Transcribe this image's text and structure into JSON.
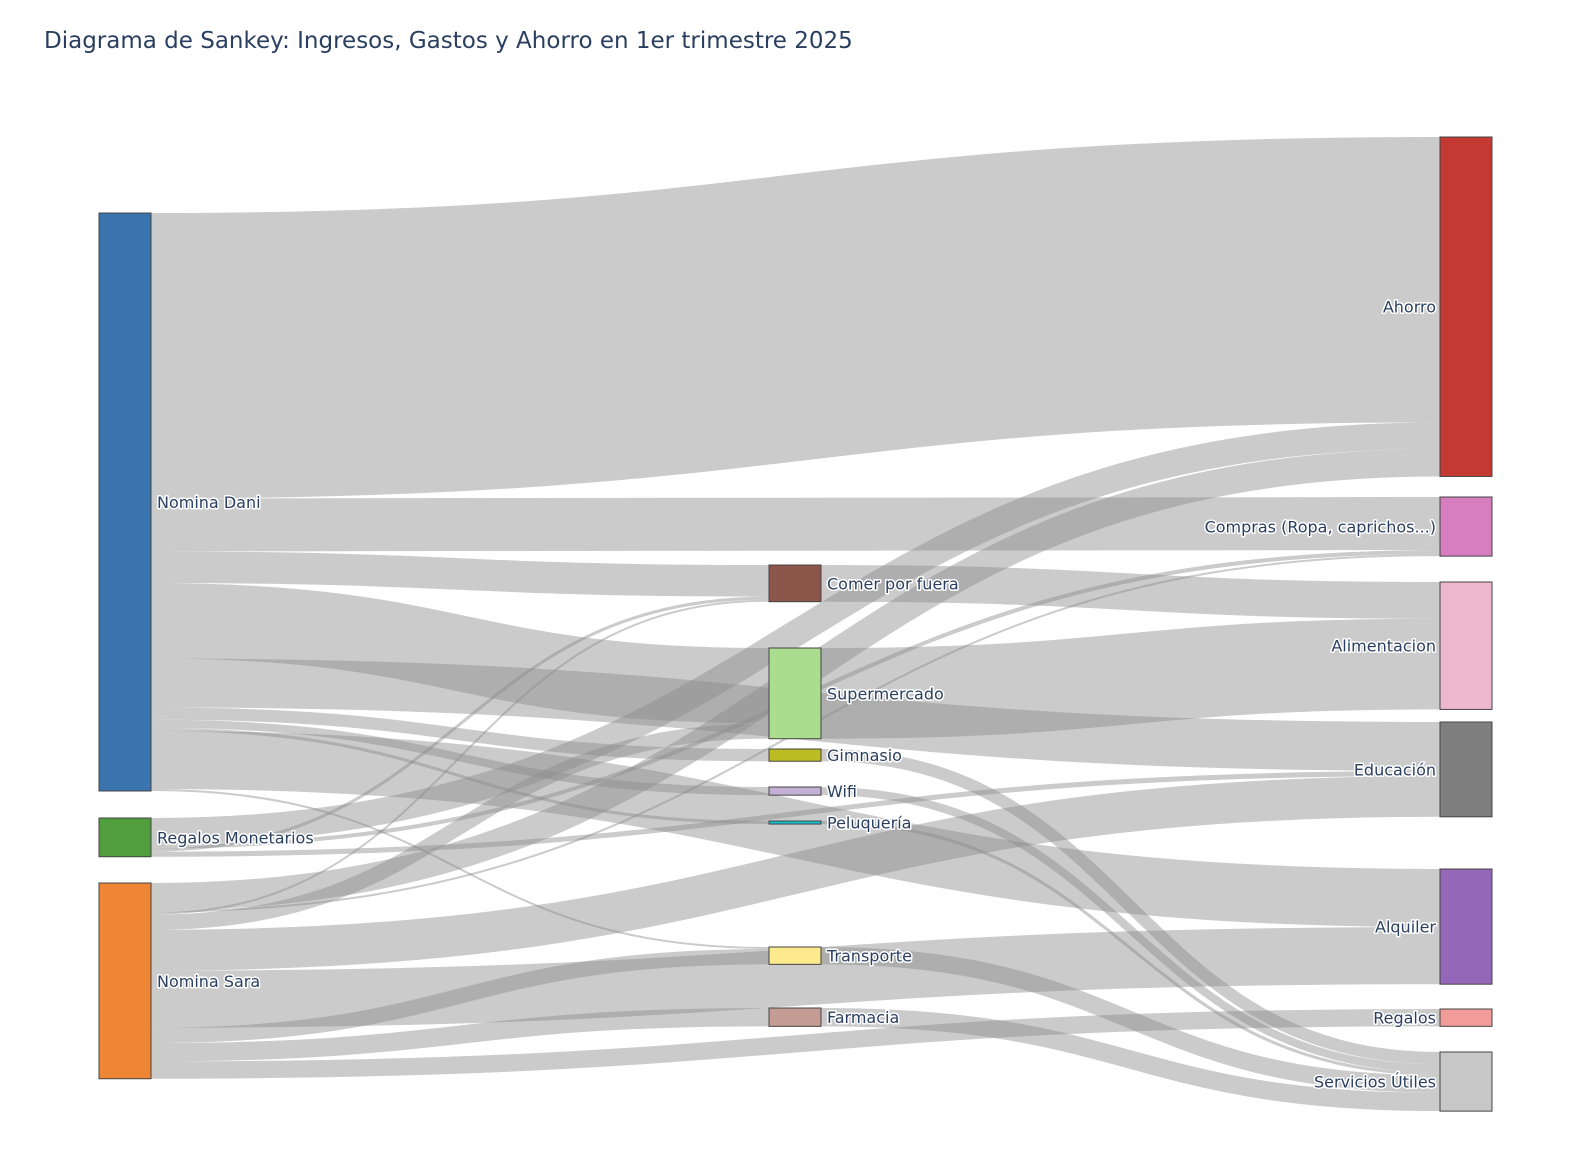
{
  "title": "Diagrama de Sankey: Ingresos, Gastos y Ahorro en 1er trimestre 2025",
  "chart_data": {
    "type": "sankey",
    "nodes": [
      {
        "id": "dani",
        "label": "Nomina Dani",
        "color": "#3a75af"
      },
      {
        "id": "regmon",
        "label": "Regalos Monetarios",
        "color": "#519e3e"
      },
      {
        "id": "sara",
        "label": "Nomina Sara",
        "color": "#ef8636"
      },
      {
        "id": "comer",
        "label": "Comer por fuera",
        "color": "#8c564b"
      },
      {
        "id": "super",
        "label": "Supermercado",
        "color": "#aadd8e"
      },
      {
        "id": "gym",
        "label": "Gimnasio",
        "color": "#bcbd22"
      },
      {
        "id": "wifi",
        "label": "Wifi",
        "color": "#c5b0d5"
      },
      {
        "id": "pelu",
        "label": "Peluquería",
        "color": "#17becf"
      },
      {
        "id": "transp",
        "label": "Transporte",
        "color": "#fdea8e"
      },
      {
        "id": "farm",
        "label": "Farmacia",
        "color": "#c49c94"
      },
      {
        "id": "ahorro",
        "label": "Ahorro",
        "color": "#c53933"
      },
      {
        "id": "compras",
        "label": "Compras (Ropa, caprichos...)",
        "color": "#d67ec0"
      },
      {
        "id": "alim",
        "label": "Alimentacion",
        "color": "#edb8ce"
      },
      {
        "id": "educ",
        "label": "Educación",
        "color": "#7f7f7f"
      },
      {
        "id": "alq",
        "label": "Alquiler",
        "color": "#9467b8"
      },
      {
        "id": "regalos",
        "label": "Regalos",
        "color": "#f19c99"
      },
      {
        "id": "serv",
        "label": "Servicios Útiles",
        "color": "#c7c7c7"
      }
    ],
    "links": [
      {
        "source": "dani",
        "target": "ahorro",
        "value": 2800
      },
      {
        "source": "dani",
        "target": "compras",
        "value": 520
      },
      {
        "source": "dani",
        "target": "comer",
        "value": 310
      },
      {
        "source": "dani",
        "target": "educ",
        "value": 480
      },
      {
        "source": "dani",
        "target": "super",
        "value": 740
      },
      {
        "source": "dani",
        "target": "gym",
        "value": 120
      },
      {
        "source": "dani",
        "target": "wifi",
        "value": 80
      },
      {
        "source": "dani",
        "target": "pelu",
        "value": 30
      },
      {
        "source": "dani",
        "target": "alq",
        "value": 570
      },
      {
        "source": "dani",
        "target": "transp",
        "value": 20
      },
      {
        "source": "regmon",
        "target": "comer",
        "value": 30
      },
      {
        "source": "regmon",
        "target": "ahorro",
        "value": 260
      },
      {
        "source": "regmon",
        "target": "compras",
        "value": 40
      },
      {
        "source": "regmon",
        "target": "educ",
        "value": 50
      },
      {
        "source": "sara",
        "target": "comer",
        "value": 20
      },
      {
        "source": "sara",
        "target": "ahorro",
        "value": 270
      },
      {
        "source": "sara",
        "target": "super",
        "value": 150
      },
      {
        "source": "sara",
        "target": "compras",
        "value": 20
      },
      {
        "source": "sara",
        "target": "educ",
        "value": 400
      },
      {
        "source": "sara",
        "target": "alq",
        "value": 560
      },
      {
        "source": "sara",
        "target": "transp",
        "value": 150
      },
      {
        "source": "sara",
        "target": "farm",
        "value": 180
      },
      {
        "source": "sara",
        "target": "regalos",
        "value": 170
      },
      {
        "source": "comer",
        "target": "alim",
        "value": 360
      },
      {
        "source": "super",
        "target": "alim",
        "value": 890
      },
      {
        "source": "gym",
        "target": "serv",
        "value": 120
      },
      {
        "source": "wifi",
        "target": "serv",
        "value": 80
      },
      {
        "source": "pelu",
        "target": "serv",
        "value": 30
      },
      {
        "source": "transp",
        "target": "serv",
        "value": 170
      },
      {
        "source": "farm",
        "target": "serv",
        "value": 180
      }
    ]
  }
}
